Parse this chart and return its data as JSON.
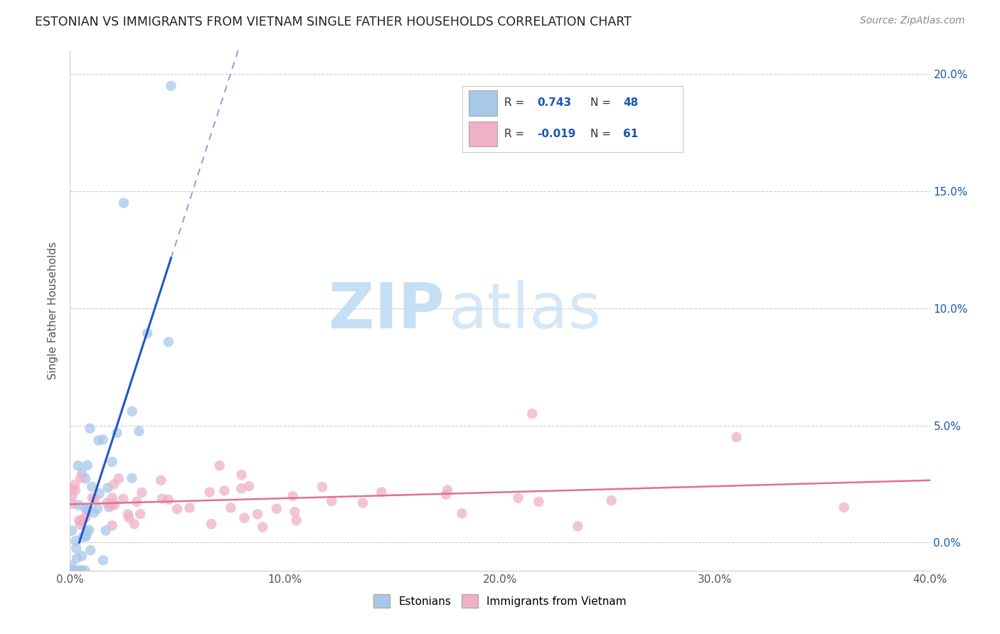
{
  "title": "ESTONIAN VS IMMIGRANTS FROM VIETNAM SINGLE FATHER HOUSEHOLDS CORRELATION CHART",
  "source": "Source: ZipAtlas.com",
  "ylabel": "Single Father Households",
  "xlim": [
    0.0,
    0.4
  ],
  "ylim": [
    -0.012,
    0.21
  ],
  "yticks": [
    0.0,
    0.05,
    0.1,
    0.15,
    0.2
  ],
  "ytick_labels": [
    "0.0%",
    "5.0%",
    "10.0%",
    "15.0%",
    "20.0%"
  ],
  "xticks": [
    0.0,
    0.1,
    0.2,
    0.3,
    0.4
  ],
  "xtick_labels": [
    "0.0%",
    "10.0%",
    "20.0%",
    "30.0%",
    "40.0%"
  ],
  "watermark_zip": "ZIP",
  "watermark_atlas": "atlas",
  "blue_scatter_color": "#a8c8e8",
  "pink_scatter_color": "#f0b0c8",
  "blue_line_color": "#2255cc",
  "pink_line_color": "#e07090",
  "background_color": "#ffffff",
  "grid_color": "#cccccc",
  "title_color": "#222222",
  "estonian_label": "Estonians",
  "vietnam_label": "Immigrants from Vietnam",
  "R_color": "#1a56b0",
  "legend_blue_R": "0.743",
  "legend_blue_N": "48",
  "legend_pink_R": "-0.019",
  "legend_pink_N": "61",
  "blue_N": 48,
  "pink_N": 61,
  "blue_seed": 7,
  "pink_seed": 13
}
